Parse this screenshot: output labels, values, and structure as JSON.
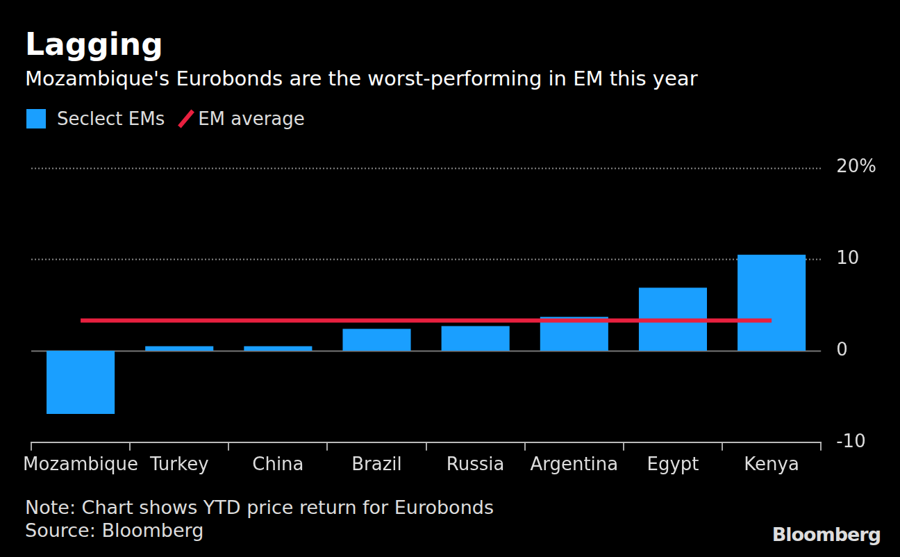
{
  "chart_data": {
    "type": "bar",
    "title": "Lagging",
    "subtitle": "Mozambique's Eurobonds are the worst-performing in EM this year",
    "categories": [
      "Mozambique",
      "Turkey",
      "China",
      "Brazil",
      "Russia",
      "Argentina",
      "Egypt",
      "Kenya"
    ],
    "series": [
      {
        "name": "Seclect EMs",
        "type": "bar",
        "color": "#1a9fff",
        "values": [
          -6.9,
          0.5,
          0.5,
          2.4,
          2.7,
          3.7,
          6.9,
          10.5
        ]
      },
      {
        "name": "EM average",
        "type": "line",
        "color": "#e8203f",
        "values": [
          3.3,
          3.3,
          3.3,
          3.3,
          3.3,
          3.3,
          3.3,
          3.3
        ]
      }
    ],
    "ylim": [
      -10,
      20
    ],
    "yticks": [
      -10,
      0,
      10,
      {
        "value": 20,
        "label": "20%"
      }
    ],
    "grid": true,
    "legend": "top-left",
    "notes": [
      "Note: Chart shows YTD price return for Eurobonds",
      "Source: Bloomberg"
    ],
    "credit": "Bloomberg"
  }
}
